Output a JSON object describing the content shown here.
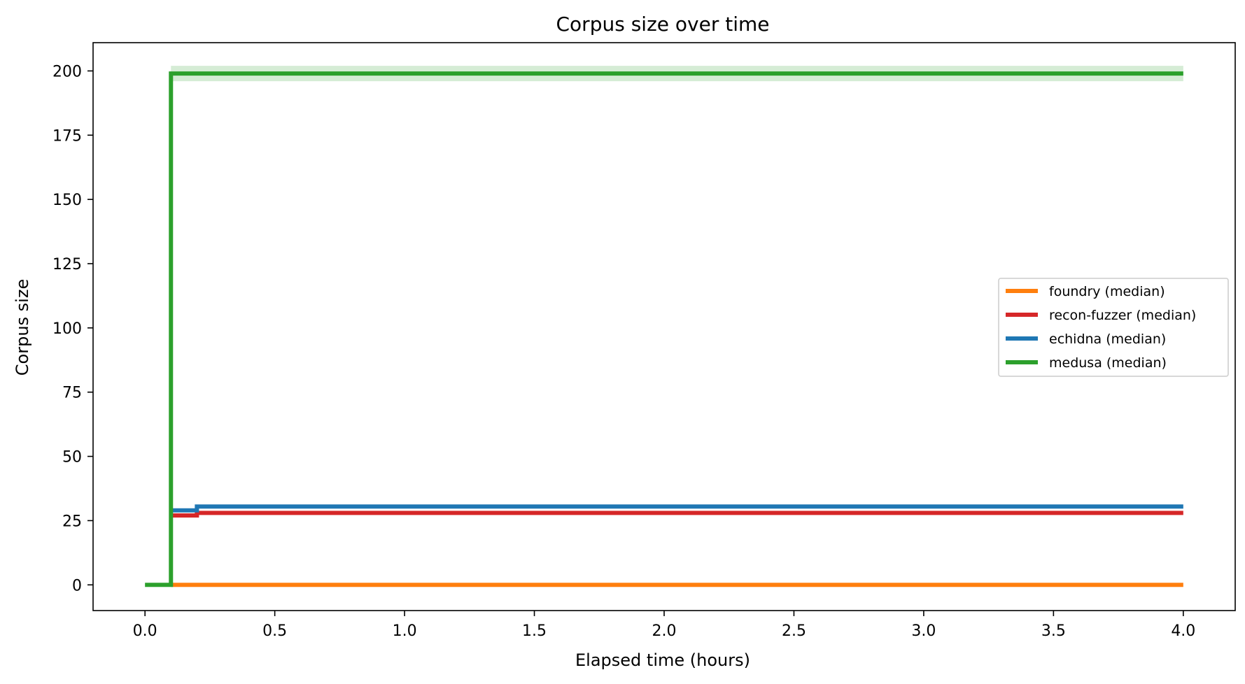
{
  "chart_data": {
    "type": "line",
    "title": "Corpus size over time",
    "xlabel": "Elapsed time (hours)",
    "ylabel": "Corpus size",
    "xlim": [
      -0.2,
      4.2
    ],
    "ylim": [
      -10,
      211
    ],
    "xticks": [
      0.0,
      0.5,
      1.0,
      1.5,
      2.0,
      2.5,
      3.0,
      3.5,
      4.0
    ],
    "xtick_labels": [
      "0.0",
      "0.5",
      "1.0",
      "1.5",
      "2.0",
      "2.5",
      "3.0",
      "3.5",
      "4.0"
    ],
    "yticks": [
      0,
      25,
      50,
      75,
      100,
      125,
      150,
      175,
      200
    ],
    "ytick_labels": [
      "0",
      "25",
      "50",
      "75",
      "100",
      "125",
      "150",
      "175",
      "200"
    ],
    "grid": false,
    "legend_position": "center-right",
    "series": [
      {
        "name": "foundry (median)",
        "color": "#ff7f0e",
        "step": true,
        "x": [
          0.1,
          4.0
        ],
        "y": [
          0,
          0
        ]
      },
      {
        "name": "recon-fuzzer (median)",
        "color": "#d62728",
        "step": true,
        "x": [
          0.1,
          0.2,
          4.0
        ],
        "y": [
          27,
          28,
          28
        ]
      },
      {
        "name": "echidna (median)",
        "color": "#1f77b4",
        "step": true,
        "x": [
          0.1,
          0.2,
          4.0
        ],
        "y": [
          29,
          30.5,
          30.5
        ]
      },
      {
        "name": "medusa (median)",
        "color": "#2ca02c",
        "step": true,
        "x": [
          0.0,
          0.1,
          0.1,
          4.0
        ],
        "y": [
          0,
          0,
          199,
          199
        ],
        "band": {
          "x": [
            0.1,
            4.0
          ],
          "lower": [
            196,
            196
          ],
          "upper": [
            202,
            202
          ]
        }
      }
    ]
  }
}
